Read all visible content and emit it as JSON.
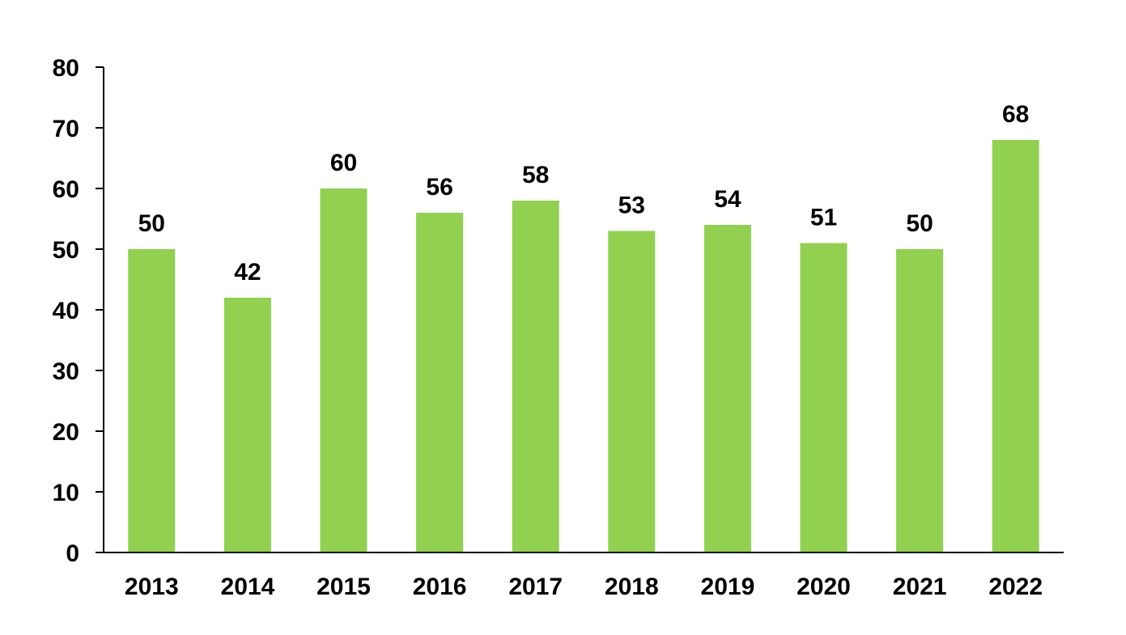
{
  "chart_data": {
    "type": "bar",
    "categories": [
      "2013",
      "2014",
      "2015",
      "2016",
      "2017",
      "2018",
      "2019",
      "2020",
      "2021",
      "2022"
    ],
    "values": [
      50,
      42,
      60,
      56,
      58,
      53,
      54,
      51,
      50,
      68
    ],
    "title": "",
    "xlabel": "",
    "ylabel": "",
    "ylim": [
      0,
      80
    ],
    "yticks": [
      "0",
      "10",
      "20",
      "30",
      "40",
      "50",
      "60",
      "70",
      "80"
    ],
    "grid": false,
    "legend": "none",
    "bar_color": "#92d050",
    "data_labels": true
  }
}
